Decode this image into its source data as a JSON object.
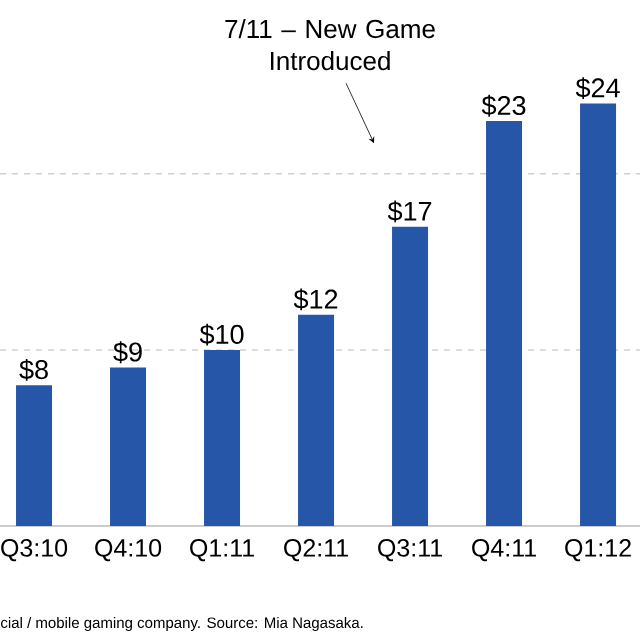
{
  "chart_data": {
    "type": "bar",
    "categories": [
      "Q3:10",
      "Q4:10",
      "Q1:11",
      "Q2:11",
      "Q3:11",
      "Q4:11",
      "Q1:12"
    ],
    "values": [
      8,
      9,
      10,
      12,
      17,
      23,
      24
    ],
    "value_labels": [
      "$8",
      "$9",
      "$10",
      "$12",
      "$17",
      "$23",
      "$24"
    ],
    "color": "#2556a8",
    "ref_lines": [
      {
        "axis": "y",
        "value": 10,
        "color": "#999999",
        "line_style": "dashed"
      },
      {
        "axis": "y",
        "value": 20,
        "color": "#999999",
        "line_style": "dashed"
      }
    ],
    "annotations": [
      "7/11 – New Game Introduced",
      "cial / mobile gaming company. Source: Mia Nagasaka."
    ]
  }
}
